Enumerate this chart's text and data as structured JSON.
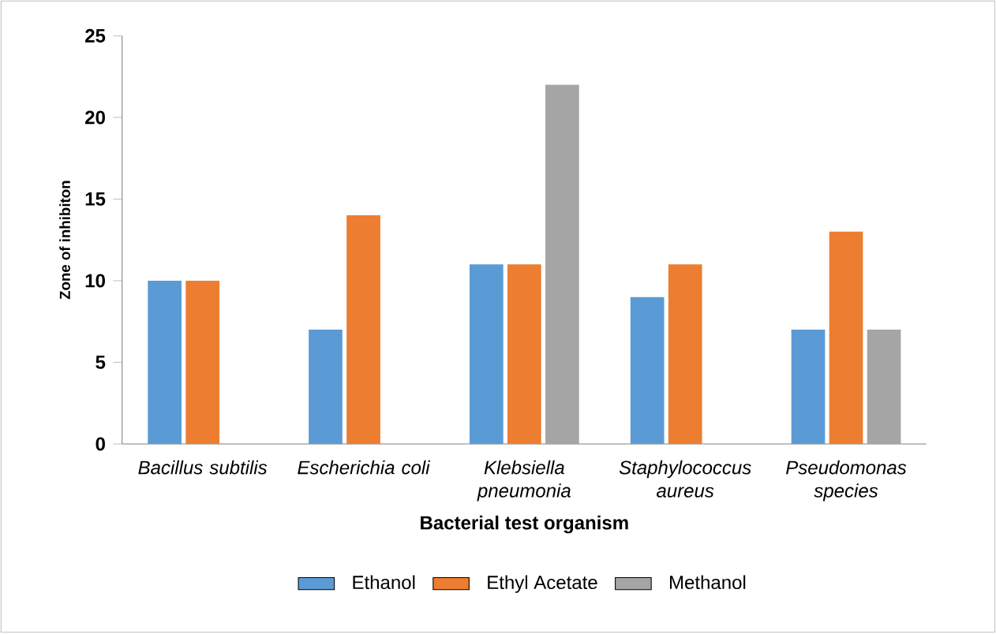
{
  "chart_data": {
    "type": "bar",
    "xlabel": "Bacterial test organism",
    "ylabel": "Zone of inhibiton",
    "categories": [
      "Bacillus  subtilis",
      "Escherichia  coli",
      "Klebsiella pneumonia",
      "Staphylococcus aureus",
      "Pseudomonas species"
    ],
    "series": [
      {
        "name": "Ethanol",
        "color": "#5b9bd5",
        "values": [
          10,
          7,
          11,
          9,
          7
        ]
      },
      {
        "name": "Ethyl Acetate",
        "color": "#ed7d31",
        "values": [
          10,
          14,
          11,
          11,
          13
        ]
      },
      {
        "name": "Methanol",
        "color": "#a5a5a5",
        "values": [
          null,
          null,
          22,
          null,
          7
        ]
      }
    ],
    "ylim": [
      0,
      25
    ],
    "yticks": [
      0,
      5,
      10,
      15,
      20,
      25
    ],
    "legend": "bottom",
    "grid": false
  }
}
